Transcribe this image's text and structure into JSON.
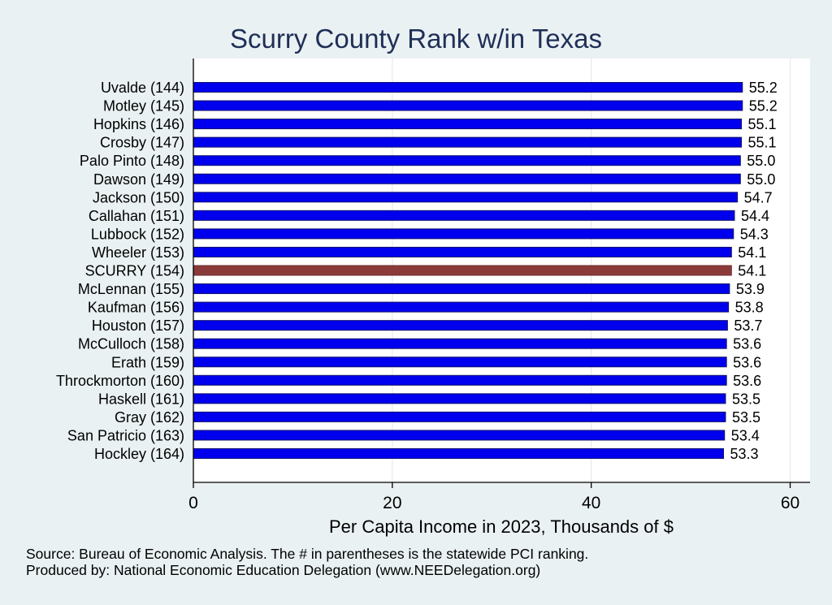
{
  "chart_data": {
    "type": "bar",
    "orientation": "horizontal",
    "title": "Scurry County Rank w/in Texas",
    "xlabel": "Per Capita Income in 2023, Thousands of $",
    "ylabel": "",
    "xlim": [
      0,
      62
    ],
    "xticks": [
      0,
      20,
      40,
      60
    ],
    "grid": true,
    "categories": [
      "Uvalde (144)",
      "Motley (145)",
      "Hopkins (146)",
      "Crosby (147)",
      "Palo Pinto (148)",
      "Dawson (149)",
      "Jackson (150)",
      "Callahan (151)",
      "Lubbock (152)",
      "Wheeler (153)",
      "SCURRY (154)",
      "McLennan (155)",
      "Kaufman (156)",
      "Houston (157)",
      "McCulloch (158)",
      "Erath (159)",
      "Throckmorton (160)",
      "Haskell (161)",
      "Gray (162)",
      "San Patricio (163)",
      "Hockley (164)"
    ],
    "values": [
      55.2,
      55.2,
      55.1,
      55.1,
      55.0,
      55.0,
      54.7,
      54.4,
      54.3,
      54.1,
      54.1,
      53.9,
      53.8,
      53.7,
      53.6,
      53.6,
      53.6,
      53.5,
      53.5,
      53.4,
      53.3
    ],
    "value_labels": [
      "55.2",
      "55.2",
      "55.1",
      "55.1",
      "55.0",
      "55.0",
      "54.7",
      "54.4",
      "54.3",
      "54.1",
      "54.1",
      "53.9",
      "53.8",
      "53.7",
      "53.6",
      "53.6",
      "53.6",
      "53.5",
      "53.5",
      "53.4",
      "53.3"
    ],
    "highlight_category": "SCURRY (154)",
    "colors": {
      "bar": "#0000ee",
      "highlight": "#8b3a3a",
      "background": "#eaf1f3",
      "plot_background": "#ffffff",
      "title": "#1f2f57",
      "grid": "#e3eaed"
    }
  },
  "notes": {
    "source": "Source: Bureau of Economic Analysis. The # in parentheses is the statewide PCI ranking.",
    "produced_by": "Produced by: National Economic Education Delegation (www.NEEDelegation.org)"
  }
}
